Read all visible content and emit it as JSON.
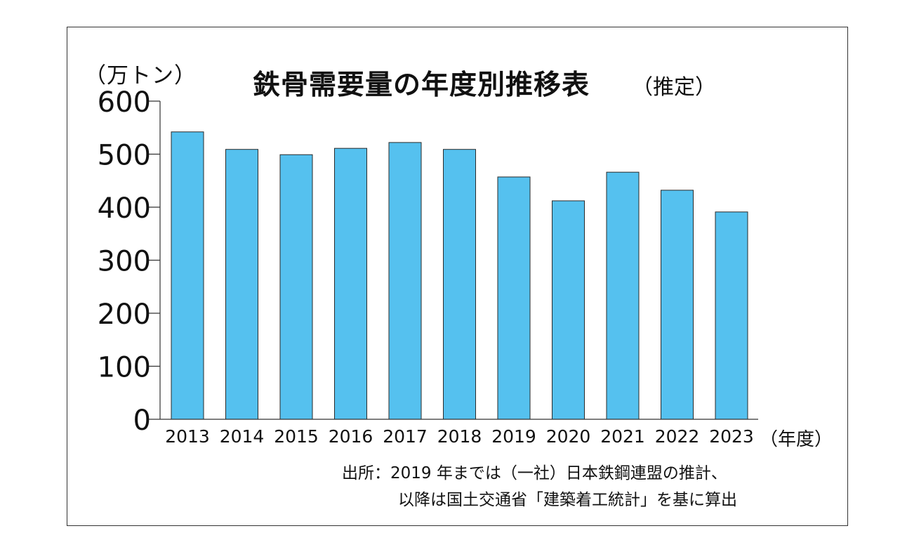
{
  "title": "鉄骨需要量の年度別推移表",
  "title_suffix": "（推定）",
  "unit_label": "（万トン）",
  "x_unit_label": "（年度）",
  "source_line1": "出所：2019 年までは（一社）日本鉄鋼連盟の推計、",
  "source_line2": "以降は国土交通省「建築着工統計」を基に算出",
  "colors": {
    "bar_fill": "#55c1ef",
    "bar_stroke": "#2a2a2a",
    "axis": "#333333"
  },
  "chart_data": {
    "type": "bar",
    "title": "鉄骨需要量の年度別推移表",
    "xlabel": "（年度）",
    "ylabel": "（万トン）",
    "ylim": [
      0,
      600
    ],
    "yticks": [
      0,
      100,
      200,
      300,
      400,
      500,
      600
    ],
    "grid": false,
    "categories": [
      "2013",
      "2014",
      "2015",
      "2016",
      "2017",
      "2018",
      "2019",
      "2020",
      "2021",
      "2022",
      "2023"
    ],
    "values": [
      542,
      509,
      499,
      511,
      522,
      509,
      457,
      412,
      466,
      432,
      391
    ]
  }
}
